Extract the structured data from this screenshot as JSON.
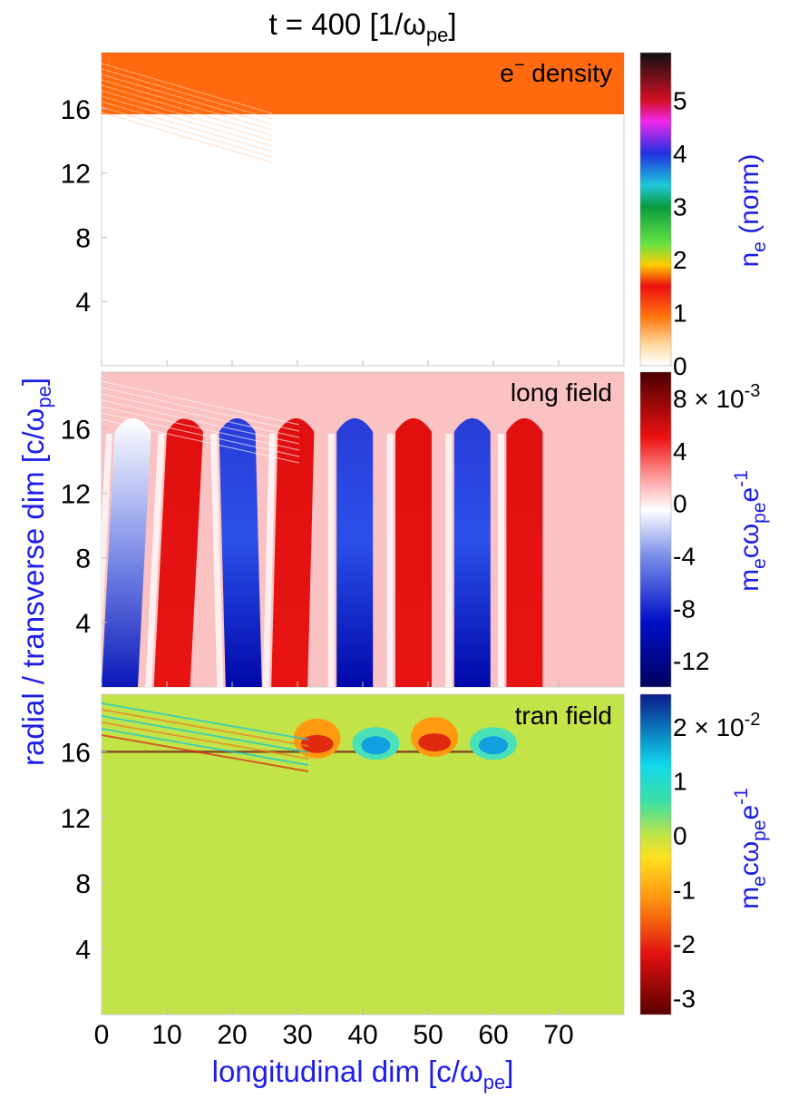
{
  "figure": {
    "title": {
      "main": "t = 400 [1/ω",
      "sub": "pe",
      "end": "]"
    },
    "ylabel": {
      "main": "radial / transverse dim [c/ω",
      "sub": "pe",
      "end": "]"
    },
    "xlabel": {
      "main": "longitudinal dim [c/ω",
      "sub": "pe",
      "end": "]"
    }
  },
  "chart_data": [
    {
      "type": "heatmap",
      "panel_label": {
        "main": "e",
        "sup": "−",
        "end": "  density"
      },
      "x_ticks": [
        "0",
        "10",
        "20",
        "30",
        "40",
        "50",
        "60",
        "70"
      ],
      "y_ticks": [
        "4",
        "8",
        "12",
        "16"
      ],
      "xlim": [
        0,
        80
      ],
      "ylim": [
        0,
        19.5
      ],
      "colors": {
        "background": "#ffffff",
        "plasma": "#ff6a10"
      },
      "regions": [
        {
          "name": "vacuum",
          "y_range": [
            0,
            16
          ],
          "density": 0
        },
        {
          "name": "plasma-slab",
          "y_range": [
            16,
            19.5
          ],
          "density": 1
        }
      ],
      "colorbar": {
        "label": {
          "main": "n",
          "sub": "e",
          "end": " (norm)"
        },
        "ticks": [
          "0",
          "1",
          "2",
          "3",
          "4",
          "5"
        ],
        "range": [
          0,
          5.9
        ],
        "stops": [
          {
            "v": 0,
            "color": "#ffffff"
          },
          {
            "v": 0.4,
            "color": "#ffd9a0"
          },
          {
            "v": 0.9,
            "color": "#ff7a10"
          },
          {
            "v": 1.5,
            "color": "#ee1010"
          },
          {
            "v": 1.9,
            "color": "#ffcc00"
          },
          {
            "v": 2.3,
            "color": "#66e244"
          },
          {
            "v": 3.0,
            "color": "#0a9a40"
          },
          {
            "v": 3.4,
            "color": "#1ec8d8"
          },
          {
            "v": 4.0,
            "color": "#2030e0"
          },
          {
            "v": 4.6,
            "color": "#ee28ee"
          },
          {
            "v": 5.0,
            "color": "#d41024"
          },
          {
            "v": 5.9,
            "color": "#101010"
          }
        ]
      }
    },
    {
      "type": "heatmap",
      "panel_label": {
        "main": "long field",
        "sup": "",
        "end": ""
      },
      "x_ticks": [
        "0",
        "10",
        "20",
        "30",
        "40",
        "50",
        "60",
        "70"
      ],
      "y_ticks": [
        "4",
        "8",
        "12",
        "16"
      ],
      "xlim": [
        0,
        80
      ],
      "ylim": [
        0,
        19.5
      ],
      "colors": {
        "background": "#fac2c2"
      },
      "wake_bands": [
        {
          "sign": "neg",
          "x_bottom": 0,
          "x_top": 2
        },
        {
          "sign": "pos",
          "x_bottom": 8,
          "x_top": 10
        },
        {
          "sign": "neg",
          "x_bottom": 19,
          "x_top": 18
        },
        {
          "sign": "pos",
          "x_bottom": 26,
          "x_top": 27
        },
        {
          "sign": "neg",
          "x_bottom": 36,
          "x_top": 36
        },
        {
          "sign": "pos",
          "x_bottom": 45,
          "x_top": 45
        },
        {
          "sign": "neg",
          "x_bottom": 54,
          "x_top": 54
        },
        {
          "sign": "pos",
          "x_bottom": 62,
          "x_top": 62
        }
      ],
      "colorbar": {
        "label": {
          "main": "m",
          "sub1": "e",
          "mid": "cω",
          "sub2": "pe",
          "mid2": "e",
          "sup": "-1",
          "end": ""
        },
        "ticks": [
          "8 × 10",
          "4",
          "0",
          "-4",
          "-8",
          "-12"
        ],
        "tick_values": [
          8,
          4,
          0,
          -4,
          -8,
          -12
        ],
        "tick_exponent": "-3",
        "range": [
          -14,
          10
        ],
        "stops": [
          {
            "v": -14,
            "color": "#000060"
          },
          {
            "v": -9,
            "color": "#0010c8"
          },
          {
            "v": -4,
            "color": "#7a8ee8"
          },
          {
            "v": -0.5,
            "color": "#ffffff"
          },
          {
            "v": 2,
            "color": "#ff9c9c"
          },
          {
            "v": 5,
            "color": "#ee1010"
          },
          {
            "v": 10,
            "color": "#4a0000"
          }
        ]
      }
    },
    {
      "type": "heatmap",
      "panel_label": {
        "main": "tran field",
        "sup": "",
        "end": ""
      },
      "x_ticks": [
        "0",
        "10",
        "20",
        "30",
        "40",
        "50",
        "60",
        "70"
      ],
      "y_ticks": [
        "4",
        "8",
        "12",
        "16"
      ],
      "xlim": [
        0,
        80
      ],
      "ylim": [
        0,
        19.5
      ],
      "colors": {
        "background": "#c2e448"
      },
      "surface_features": [
        {
          "sign": "neg",
          "x": 33,
          "y": 16.8
        },
        {
          "sign": "pos",
          "x": 42,
          "y": 16.5
        },
        {
          "sign": "neg",
          "x": 51,
          "y": 16.9
        },
        {
          "sign": "pos",
          "x": 60,
          "y": 16.5
        }
      ],
      "colorbar": {
        "label": {
          "main": "m",
          "sub1": "e",
          "mid": "cω",
          "sub2": "pe",
          "mid2": "e",
          "sup": "-1",
          "end": ""
        },
        "ticks": [
          "2 × 10",
          "1",
          "0",
          "-1",
          "-2",
          "-3"
        ],
        "tick_values": [
          2,
          1,
          0,
          -1,
          -2,
          -3
        ],
        "tick_exponent": "-2",
        "range": [
          -3.3,
          2.6
        ],
        "stops": [
          {
            "v": -3.3,
            "color": "#5a0000"
          },
          {
            "v": -2.2,
            "color": "#e01010"
          },
          {
            "v": -1.2,
            "color": "#ff9010"
          },
          {
            "v": -0.4,
            "color": "#ffe020"
          },
          {
            "v": 0,
            "color": "#c2e448"
          },
          {
            "v": 0.6,
            "color": "#40e0a0"
          },
          {
            "v": 1.3,
            "color": "#10d8ec"
          },
          {
            "v": 2.6,
            "color": "#0a1a8a"
          }
        ]
      }
    }
  ]
}
